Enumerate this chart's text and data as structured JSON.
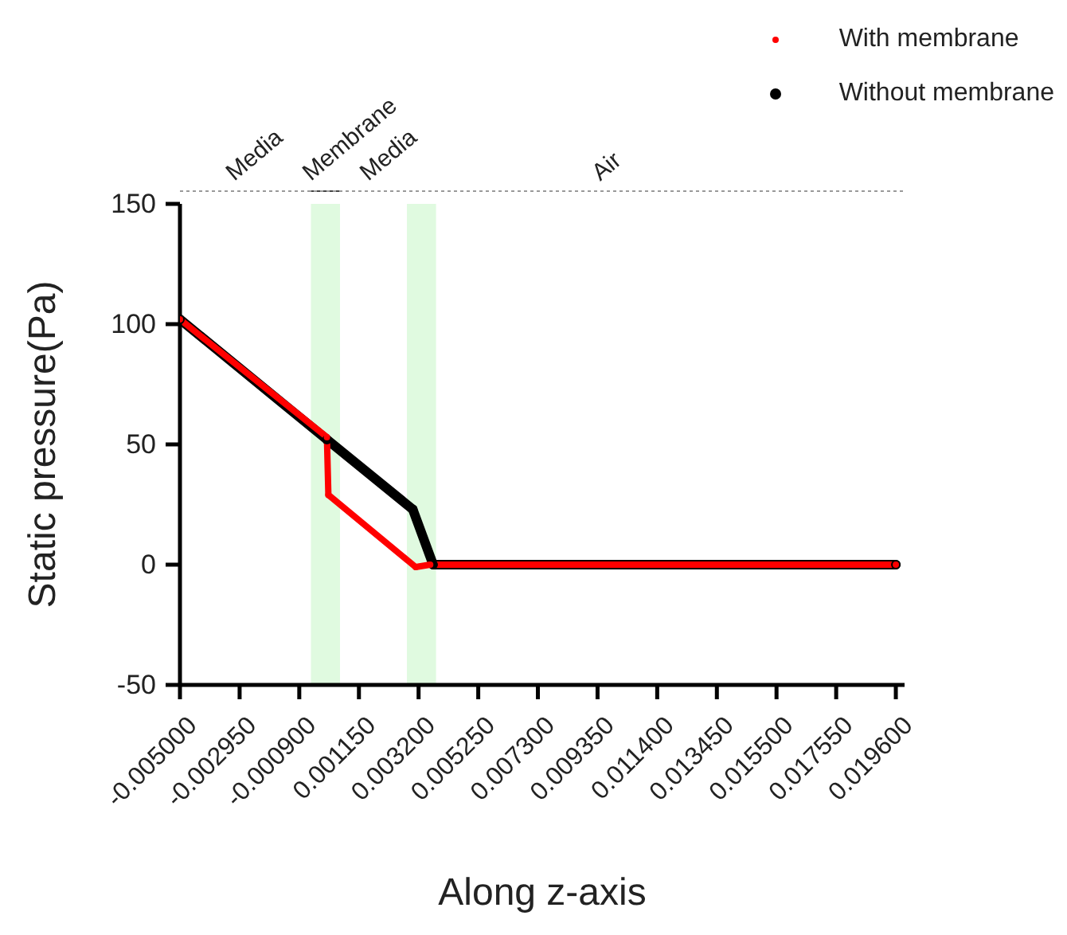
{
  "chart_data": {
    "type": "line",
    "xlabel": "Along z-axis",
    "ylabel": "Static pressure(Pa)",
    "xlim": [
      -0.005,
      0.0199
    ],
    "xticks": [
      {
        "value": -0.005,
        "label": "-0.005000"
      },
      {
        "value": -0.00295,
        "label": "-0.002950"
      },
      {
        "value": -0.0009,
        "label": "-0.000900"
      },
      {
        "value": 0.00115,
        "label": "0.001150"
      },
      {
        "value": 0.0032,
        "label": "0.003200"
      },
      {
        "value": 0.00525,
        "label": "0.005250"
      },
      {
        "value": 0.0073,
        "label": "0.007300"
      },
      {
        "value": 0.00935,
        "label": "0.009350"
      },
      {
        "value": 0.0114,
        "label": "0.011400"
      },
      {
        "value": 0.01345,
        "label": "0.013450"
      },
      {
        "value": 0.0155,
        "label": "0.015500"
      },
      {
        "value": 0.01755,
        "label": "0.017550"
      },
      {
        "value": 0.0196,
        "label": "0.019600"
      }
    ],
    "ylim": [
      -50,
      150
    ],
    "yticks": [
      -50,
      0,
      50,
      100,
      150
    ],
    "legend": "top right",
    "marker": "circle",
    "line_style": "solid",
    "series": [
      {
        "name": "With membrane",
        "color": "#ff0000",
        "x": [
          -0.005,
          5e-05,
          0.0001,
          0.0031,
          0.0036,
          0.0196
        ],
        "values": [
          102,
          53,
          29,
          -1,
          0,
          0
        ]
      },
      {
        "name": "Without membrane",
        "color": "#000000",
        "x": [
          -0.005,
          5e-05,
          0.003,
          0.0037,
          0.0196
        ],
        "values": [
          102,
          52,
          23,
          0,
          0
        ]
      }
    ],
    "bands": [
      {
        "axis": "x",
        "from": -0.0005,
        "to": 0.0005,
        "label": "Membrane",
        "color": "#e0fae0"
      },
      {
        "axis": "x",
        "from": 0.0028,
        "to": 0.0038,
        "color": "#e0fae0"
      }
    ],
    "annotations": [
      "Media",
      "Media",
      "Air"
    ]
  }
}
